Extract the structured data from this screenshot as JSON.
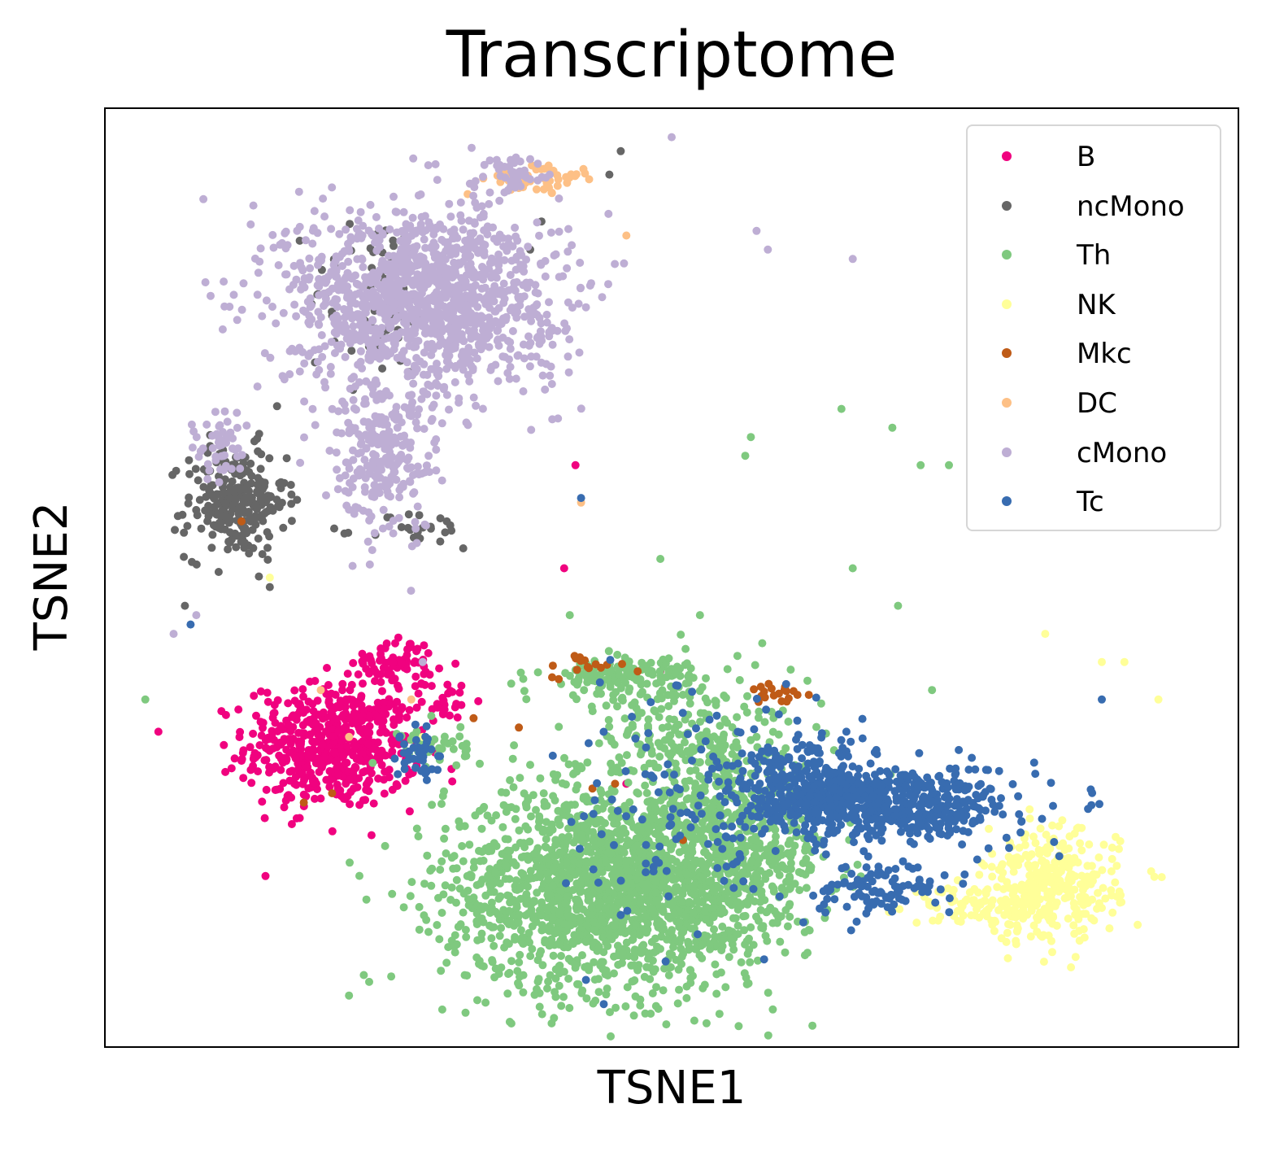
{
  "chart_data": {
    "type": "scatter",
    "title": "Transcriptome",
    "xlabel": "TSNE1",
    "ylabel": "TSNE2",
    "xlim": [
      -50,
      50
    ],
    "ylim": [
      -50,
      50
    ],
    "grid": false,
    "ticks_shown": false,
    "legend_position": "top-right",
    "series": [
      {
        "name": "B",
        "color": "#f0027f",
        "clusters": [
          {
            "cx": -30,
            "cy": -18,
            "sx": 3.8,
            "sy": 3.3,
            "n": 560
          },
          {
            "cx": -24.5,
            "cy": -9,
            "sx": 1.8,
            "sy": 1.3,
            "n": 70
          },
          {
            "cx": -20,
            "cy": -13,
            "sx": 1.0,
            "sy": 1.0,
            "n": 25
          }
        ],
        "outliers": [
          [
            -8.5,
            12
          ],
          [
            -9.5,
            1
          ],
          [
            -1,
            -10
          ],
          [
            -4,
            -22
          ]
        ]
      },
      {
        "name": "ncMono",
        "color": "#666666",
        "clusters": [
          {
            "cx": -38.5,
            "cy": 8,
            "sx": 2.2,
            "sy": 3.0,
            "n": 250
          },
          {
            "cx": -26,
            "cy": 30,
            "sx": 3.0,
            "sy": 4.5,
            "n": 60
          },
          {
            "cx": -22,
            "cy": 5,
            "sx": 2.5,
            "sy": 1.0,
            "n": 25
          }
        ],
        "outliers": [
          [
            -4.5,
            45.5
          ],
          [
            -5.5,
            43
          ],
          [
            -43,
            -3
          ],
          [
            -11.5,
            38
          ],
          [
            -12.5,
            35
          ]
        ]
      },
      {
        "name": "Th",
        "color": "#7fc97f",
        "clusters": [
          {
            "cx": -6,
            "cy": -33,
            "sx": 7.0,
            "sy": 5.5,
            "n": 1700
          },
          {
            "cx": 5,
            "cy": -29,
            "sx": 4.5,
            "sy": 5.5,
            "n": 600
          },
          {
            "cx": -4.5,
            "cy": -10.5,
            "sx": 3.5,
            "sy": 1.0,
            "n": 140
          },
          {
            "cx": 1,
            "cy": -17,
            "sx": 4.5,
            "sy": 4.5,
            "n": 200
          },
          {
            "cx": -21,
            "cy": -18,
            "sx": 1.5,
            "sy": 1.2,
            "n": 40
          }
        ],
        "outliers": [
          [
            -46.5,
            -13
          ],
          [
            7,
            15
          ],
          [
            6.5,
            13
          ],
          [
            15,
            18
          ],
          [
            19.5,
            16
          ],
          [
            -1,
            2
          ],
          [
            2.5,
            -4
          ],
          [
            16,
            1
          ],
          [
            23,
            -12
          ],
          [
            12,
            -11
          ],
          [
            8,
            -7
          ],
          [
            20,
            -3
          ],
          [
            -9,
            -4
          ],
          [
            7.5,
            -17
          ],
          [
            24.5,
            12
          ],
          [
            22,
            12
          ]
        ]
      },
      {
        "name": "NK",
        "color": "#ffff99",
        "clusters": [
          {
            "cx": 33.5,
            "cy": -33,
            "sx": 3.0,
            "sy": 3.0,
            "n": 320
          },
          {
            "cx": 27,
            "cy": -35,
            "sx": 3.0,
            "sy": 1.0,
            "n": 80
          }
        ],
        "outliers": [
          [
            33,
            -6
          ],
          [
            38,
            -9
          ],
          [
            40,
            -9
          ],
          [
            43,
            -13
          ],
          [
            -35.5,
            0
          ],
          [
            -22,
            -17
          ]
        ]
      },
      {
        "name": "Mkc",
        "color": "#bf5b17",
        "clusters": [
          {
            "cx": 9.5,
            "cy": -12.5,
            "sx": 1.3,
            "sy": 0.8,
            "n": 20
          },
          {
            "cx": -8,
            "cy": -9.5,
            "sx": 1.5,
            "sy": 0.6,
            "n": 15
          }
        ],
        "outliers": [
          [
            -13.5,
            -16
          ],
          [
            -38,
            6
          ],
          [
            -32.5,
            -24
          ],
          [
            -5,
            -22
          ],
          [
            -7,
            -22.5
          ],
          [
            1,
            -28
          ],
          [
            -17.5,
            -15
          ],
          [
            -30,
            -23
          ],
          [
            -3,
            -10
          ]
        ]
      },
      {
        "name": "DC",
        "color": "#fdc086",
        "clusters": [
          {
            "cx": -11.5,
            "cy": 42.5,
            "sx": 2.5,
            "sy": 0.8,
            "n": 50
          }
        ],
        "outliers": [
          [
            -4,
            36.5
          ],
          [
            -8,
            8
          ],
          [
            -31,
            -12
          ],
          [
            -23,
            -13
          ],
          [
            -28.5,
            -17
          ]
        ]
      },
      {
        "name": "cMono",
        "color": "#beaed4",
        "clusters": [
          {
            "cx": -22,
            "cy": 30,
            "sx": 6.0,
            "sy": 4.8,
            "n": 1300
          },
          {
            "cx": -25.5,
            "cy": 13,
            "sx": 2.5,
            "sy": 4.2,
            "n": 260
          },
          {
            "cx": -13.5,
            "cy": 43,
            "sx": 1.5,
            "sy": 0.9,
            "n": 40
          },
          {
            "cx": -40,
            "cy": 14,
            "sx": 1.2,
            "sy": 2.0,
            "n": 50
          }
        ],
        "outliers": [
          [
            -21.5,
            44
          ],
          [
            0,
            47
          ],
          [
            7.5,
            37
          ],
          [
            8.5,
            35
          ],
          [
            16,
            34
          ],
          [
            -42,
            -4
          ],
          [
            -44,
            -6
          ],
          [
            -22,
            -9
          ]
        ]
      },
      {
        "name": "Tc",
        "color": "#386cb0",
        "clusters": [
          {
            "cx": 18,
            "cy": -24,
            "sx": 6.0,
            "sy": 2.0,
            "n": 700
          },
          {
            "cx": 12,
            "cy": -22,
            "sx": 3.0,
            "sy": 2.5,
            "n": 150
          },
          {
            "cx": 18.5,
            "cy": -33,
            "sx": 3.0,
            "sy": 1.5,
            "n": 100
          },
          {
            "cx": -22.5,
            "cy": -19,
            "sx": 1.0,
            "sy": 1.5,
            "n": 40
          },
          {
            "cx": 1,
            "cy": -25,
            "sx": 4.5,
            "sy": 7.0,
            "n": 110
          }
        ],
        "outliers": [
          [
            -6,
            -45.5
          ],
          [
            -10.5,
            -19
          ],
          [
            -8,
            8.5
          ],
          [
            -42.5,
            -5
          ],
          [
            38,
            -13
          ],
          [
            -4.5,
            -36
          ]
        ]
      }
    ]
  }
}
